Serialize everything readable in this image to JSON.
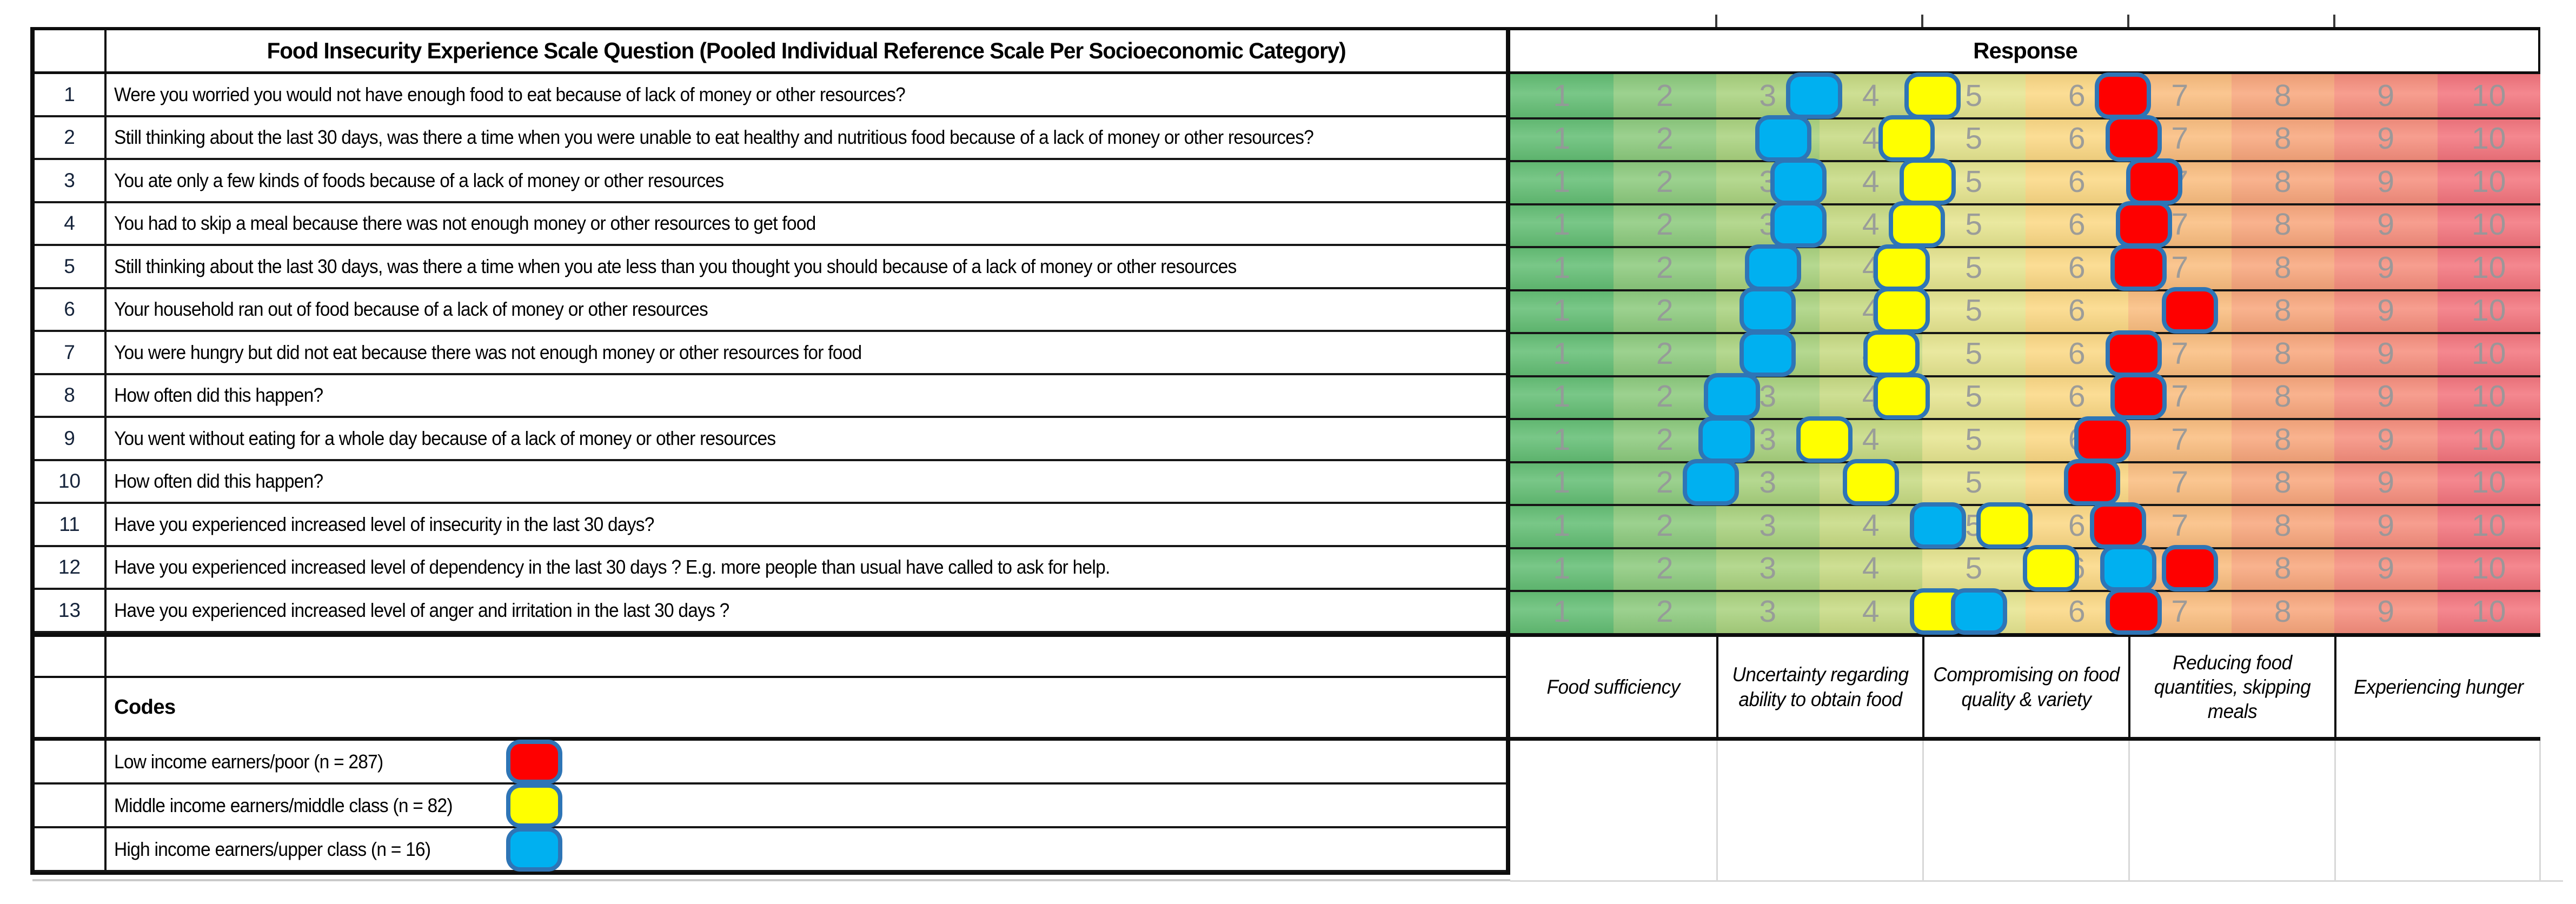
{
  "header": {
    "question_column_title": "Food Insecurity Experience Scale Question (Pooled Individual Reference Scale Per Socioeconomic Category)",
    "response_column_title": "Response"
  },
  "scale": {
    "min": 1,
    "max": 10,
    "tick_labels": [
      "1",
      "2",
      "3",
      "4",
      "5",
      "6",
      "7",
      "8",
      "9",
      "10"
    ],
    "column_colors": [
      "#63BE74",
      "#8CCA7D",
      "#A9D27E",
      "#C6DA82",
      "#E6E590",
      "#FBD884",
      "#FABD7F",
      "#F8A67C",
      "#F68E7D",
      "#F3747D"
    ],
    "tick_text_color": "#96989a"
  },
  "series_styles": {
    "low": {
      "fill": "#FE0000",
      "outline": "#2E75B6"
    },
    "middle": {
      "fill": "#FFFF00",
      "outline": "#2E75B6"
    },
    "high": {
      "fill": "#00B0F0",
      "outline": "#2E75B6"
    }
  },
  "questions": [
    {
      "num": "1",
      "text": "Were you worried you would not have enough food to eat because of lack of money or other resources?",
      "markers": [
        {
          "series": "high",
          "value": 3.45
        },
        {
          "series": "middle",
          "value": 4.6
        },
        {
          "series": "low",
          "value": 6.45
        }
      ]
    },
    {
      "num": "2",
      "text": "Still thinking about the last 30 days, was there a time when you were unable to eat healthy and nutritious food because of a lack of money or other resources?",
      "markers": [
        {
          "series": "high",
          "value": 3.15
        },
        {
          "series": "middle",
          "value": 4.35
        },
        {
          "series": "low",
          "value": 6.55
        }
      ]
    },
    {
      "num": "3",
      "text": "You ate only a few kinds of foods because of a lack of money or other resources",
      "markers": [
        {
          "series": "high",
          "value": 3.3
        },
        {
          "series": "middle",
          "value": 4.55
        },
        {
          "series": "low",
          "value": 6.75
        }
      ]
    },
    {
      "num": "4",
      "text": "You had to skip a meal because there was not enough money or other resources to get food",
      "markers": [
        {
          "series": "high",
          "value": 3.3
        },
        {
          "series": "middle",
          "value": 4.45
        },
        {
          "series": "low",
          "value": 6.65
        }
      ]
    },
    {
      "num": "5",
      "text": "Still thinking about the last 30 days, was there a time when you ate less than you thought you should because of a lack of money or other resources",
      "markers": [
        {
          "series": "high",
          "value": 3.05
        },
        {
          "series": "middle",
          "value": 4.3
        },
        {
          "series": "low",
          "value": 6.6
        }
      ]
    },
    {
      "num": "6",
      "text": "Your household ran out of food because of a lack of money or other resources",
      "markers": [
        {
          "series": "high",
          "value": 3.0
        },
        {
          "series": "middle",
          "value": 4.3
        },
        {
          "series": "low",
          "value": 7.1
        }
      ]
    },
    {
      "num": "7",
      "text": "You were hungry but did not eat because there was not enough money or other resources for food",
      "markers": [
        {
          "series": "high",
          "value": 3.0
        },
        {
          "series": "middle",
          "value": 4.2
        },
        {
          "series": "low",
          "value": 6.55
        }
      ]
    },
    {
      "num": "8",
      "text": "How often did this happen?",
      "markers": [
        {
          "series": "high",
          "value": 2.65
        },
        {
          "series": "middle",
          "value": 4.3
        },
        {
          "series": "low",
          "value": 6.6
        }
      ]
    },
    {
      "num": "9",
      "text": "You went without eating for a whole day because of a lack of money or other resources",
      "markers": [
        {
          "series": "high",
          "value": 2.6
        },
        {
          "series": "middle",
          "value": 3.55
        },
        {
          "series": "low",
          "value": 6.25
        }
      ]
    },
    {
      "num": "10",
      "text": "How often did this happen?",
      "markers": [
        {
          "series": "high",
          "value": 2.45
        },
        {
          "series": "middle",
          "value": 4.0
        },
        {
          "series": "low",
          "value": 6.15
        }
      ]
    },
    {
      "num": "11",
      "text": "Have you experienced increased level of insecurity in the last 30 days?",
      "markers": [
        {
          "series": "high",
          "value": 4.65
        },
        {
          "series": "middle",
          "value": 5.3
        },
        {
          "series": "low",
          "value": 6.4
        }
      ]
    },
    {
      "num": "12",
      "text": "Have you experienced increased level of dependency in the last 30 days ? E.g. more people than usual have called to ask for help.",
      "markers": [
        {
          "series": "middle",
          "value": 5.75
        },
        {
          "series": "high",
          "value": 6.5
        },
        {
          "series": "low",
          "value": 7.1
        }
      ]
    },
    {
      "num": "13",
      "text": "Have you experienced increased level of anger and irritation in the last 30 days ?",
      "markers": [
        {
          "series": "middle",
          "value": 4.65
        },
        {
          "series": "high",
          "value": 5.05
        },
        {
          "series": "low",
          "value": 6.55
        }
      ]
    }
  ],
  "categories": [
    {
      "label": "Food sufficiency",
      "span_columns": [
        1,
        2
      ]
    },
    {
      "label": "Uncertainty regarding ability to obtain food",
      "span_columns": [
        3,
        4
      ]
    },
    {
      "label": "Compromising on food quality & variety",
      "span_columns": [
        5,
        6
      ]
    },
    {
      "label": "Reducing food quantities, skipping meals",
      "span_columns": [
        7,
        8
      ]
    },
    {
      "label": "Experiencing hunger",
      "span_columns": [
        9,
        10
      ]
    }
  ],
  "legend": {
    "title": "Codes",
    "items": [
      {
        "label": "Low income earners/poor (n = 287)",
        "series": "low",
        "fill": "#FE0000"
      },
      {
        "label": "Middle income earners/middle class (n = 82)",
        "series": "middle",
        "fill": "#FFFF00"
      },
      {
        "label": "High income earners/upper class (n = 16)",
        "series": "high",
        "fill": "#00B0F0"
      }
    ]
  },
  "chart_data": {
    "type": "scatter",
    "subtype": "dot-plot-on-color-scale",
    "title": "Food Insecurity Experience Scale Question (Pooled Individual Reference Scale Per Socioeconomic Category)",
    "xlabel": "Response",
    "xlim": [
      1,
      10
    ],
    "x_ticks": [
      1,
      2,
      3,
      4,
      5,
      6,
      7,
      8,
      9,
      10
    ],
    "categories": [
      "Q1",
      "Q2",
      "Q3",
      "Q4",
      "Q5",
      "Q6",
      "Q7",
      "Q8",
      "Q9",
      "Q10",
      "Q11",
      "Q12",
      "Q13"
    ],
    "series": [
      {
        "name": "Low income earners/poor (n = 287)",
        "color": "#FE0000",
        "values": [
          6.45,
          6.55,
          6.75,
          6.65,
          6.6,
          7.1,
          6.55,
          6.6,
          6.25,
          6.15,
          6.4,
          7.1,
          6.55
        ]
      },
      {
        "name": "Middle income earners/middle class (n = 82)",
        "color": "#FFFF00",
        "values": [
          4.6,
          4.35,
          4.55,
          4.45,
          4.3,
          4.3,
          4.2,
          4.3,
          3.55,
          4.0,
          5.3,
          5.75,
          4.65
        ]
      },
      {
        "name": "High income earners/upper class (n = 16)",
        "color": "#00B0F0",
        "values": [
          3.45,
          3.15,
          3.3,
          3.3,
          3.05,
          3.0,
          3.0,
          2.65,
          2.6,
          2.45,
          4.65,
          6.5,
          5.05
        ]
      }
    ],
    "band_category_labels": [
      "Food sufficiency",
      "Uncertainty regarding ability to obtain food",
      "Compromising on food quality & variety",
      "Reducing food quantities, skipping meals",
      "Experiencing hunger"
    ],
    "legend_position": "bottom-left",
    "grid": false
  }
}
